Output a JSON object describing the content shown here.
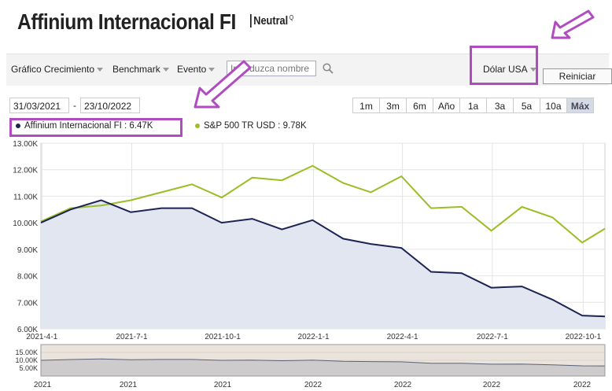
{
  "header": {
    "title": "Affinium Internacional FI",
    "rating_label": "Neutral",
    "rating_marker": "Q"
  },
  "toolbar": {
    "menus": [
      {
        "label": "Gráfico Crecimiento"
      },
      {
        "label": "Benchmark"
      },
      {
        "label": "Evento"
      }
    ],
    "search_placeholder": "Introduzca nombre",
    "currency": "Dólar USA",
    "reset_label": "Reiniciar"
  },
  "date_range": {
    "start": "31/03/2021",
    "separator": "-",
    "end": "23/10/2022",
    "buttons": [
      "1m",
      "3m",
      "6m",
      "Año",
      "1a",
      "3a",
      "5a",
      "10a",
      "Máx"
    ],
    "active": "Máx"
  },
  "legend": {
    "fund": "Affinium Internacional FI : 6.47K",
    "benchmark": "S&P 500 TR USD : 9.78K"
  },
  "colors": {
    "fund": "#1b2452",
    "benchmark": "#9bbd25",
    "fund_area": "#e2e6f0",
    "highlight": "#b04bc0",
    "navigator_bg": "#f9efe3"
  },
  "annotations": [
    "arrow-pointer",
    "arrow-pointer"
  ],
  "chart_data": {
    "type": "line",
    "x": [
      "2021-03-31",
      "2021-04-30",
      "2021-05-31",
      "2021-06-30",
      "2021-07-31",
      "2021-08-31",
      "2021-09-30",
      "2021-10-31",
      "2021-11-30",
      "2021-12-31",
      "2022-01-31",
      "2022-02-28",
      "2022-03-31",
      "2022-04-30",
      "2022-05-31",
      "2022-06-30",
      "2022-07-31",
      "2022-08-31",
      "2022-09-30",
      "2022-10-23"
    ],
    "series": [
      {
        "name": "Affinium Internacional FI",
        "values": [
          10.0,
          10.5,
          10.85,
          10.4,
          10.55,
          10.55,
          10.0,
          10.15,
          9.75,
          10.1,
          9.4,
          9.2,
          9.05,
          8.15,
          8.1,
          7.55,
          7.6,
          7.1,
          6.5,
          6.47
        ]
      },
      {
        "name": "S&P 500 TR USD",
        "values": [
          10.05,
          10.55,
          10.65,
          10.85,
          11.15,
          11.45,
          10.95,
          11.7,
          11.6,
          12.15,
          11.5,
          11.15,
          11.75,
          10.55,
          10.6,
          9.7,
          10.6,
          10.2,
          9.25,
          9.78
        ]
      }
    ],
    "ylim": [
      6.0,
      13.0
    ],
    "yticks": [
      "13.00K",
      "12.00K",
      "11.00K",
      "10.00K",
      "9.00K",
      "8.00K",
      "7.00K",
      "6.00K"
    ],
    "xtick_labels": [
      "2021-4-1",
      "2021-7-1",
      "2021-10-1",
      "2022-1-1",
      "2022-4-1",
      "2022-7-1",
      "2022-10-1"
    ],
    "navigator": {
      "yticks": [
        "15.00K",
        "10.00K",
        "5.00K"
      ],
      "xtick_labels": [
        "2021",
        "2021",
        "2021",
        "2022",
        "2022",
        "2022",
        "2022"
      ]
    },
    "grid": true,
    "legend_position": "top-left"
  }
}
